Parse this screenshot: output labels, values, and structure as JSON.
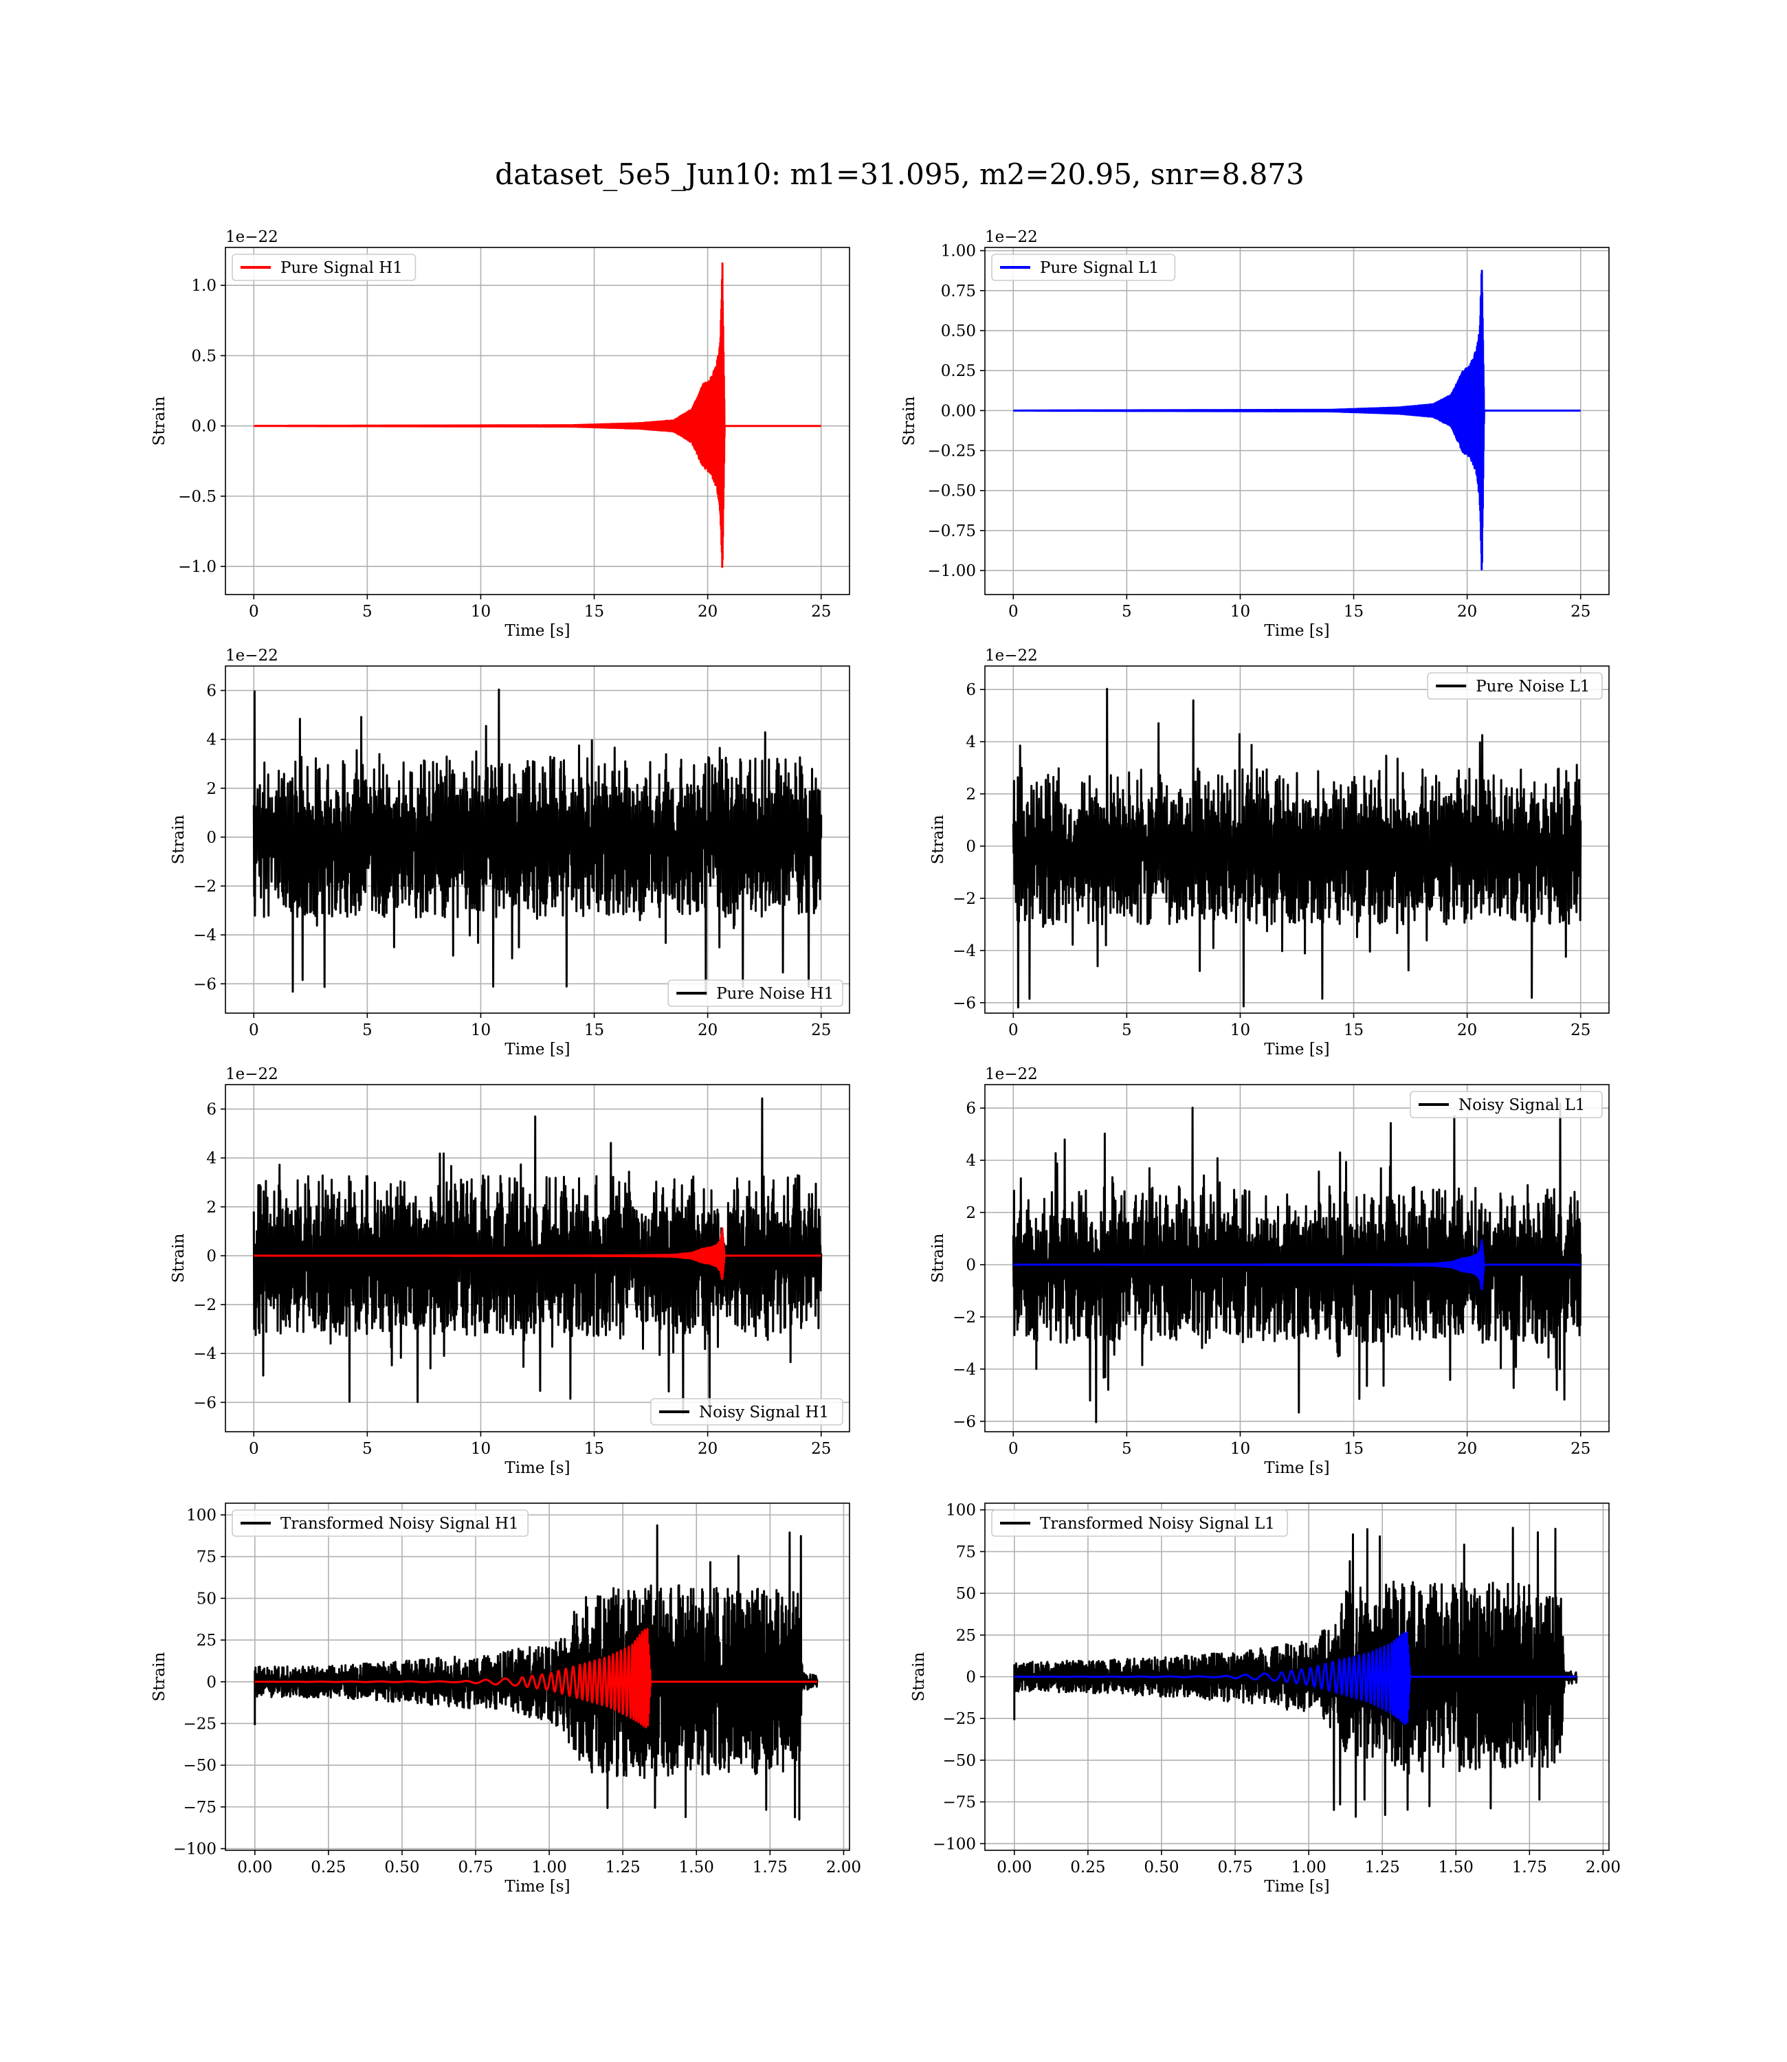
{
  "figure": {
    "title": "dataset_5e5_Jun10: m1=31.095, m2=20.95, snr=8.873"
  },
  "chart_data": [
    {
      "id": "pure-signal-h1",
      "type": "line",
      "xlabel": "Time [s]",
      "ylabel": "Strain",
      "y_offset_label": "1e−22",
      "xlim": [
        -1.25,
        26.25
      ],
      "ylim": [
        -1.2,
        1.27
      ],
      "xticks": [
        0,
        5,
        10,
        15,
        20,
        25
      ],
      "xtick_labels": [
        "0",
        "5",
        "10",
        "15",
        "20",
        "25"
      ],
      "yticks": [
        -1.0,
        -0.5,
        0.0,
        0.5,
        1.0
      ],
      "ytick_labels": [
        "−1.0",
        "−0.5",
        "0.0",
        "0.5",
        "1.0"
      ],
      "grid": true,
      "legend_position": "upper-left",
      "series": [
        {
          "name": "Pure Signal H1",
          "color": "#ff0000",
          "kind": "chirp",
          "x_start": 0,
          "x_end": 25,
          "t_merger": 20.65,
          "env_x": [
            0,
            14,
            17,
            18.5,
            19.3,
            19.8,
            20.1,
            20.4,
            20.55,
            20.65,
            20.75
          ],
          "env_upper": [
            0,
            0.005,
            0.02,
            0.04,
            0.12,
            0.3,
            0.33,
            0.45,
            0.6,
            1.16,
            0
          ],
          "env_lower": [
            0,
            -0.005,
            -0.02,
            -0.04,
            -0.12,
            -0.3,
            -0.33,
            -0.45,
            -0.62,
            -1.06,
            0
          ]
        }
      ]
    },
    {
      "id": "pure-signal-l1",
      "type": "line",
      "xlabel": "Time [s]",
      "ylabel": "Strain",
      "y_offset_label": "1e−22",
      "xlim": [
        -1.25,
        26.25
      ],
      "ylim": [
        -1.15,
        1.02
      ],
      "xticks": [
        0,
        5,
        10,
        15,
        20,
        25
      ],
      "xtick_labels": [
        "0",
        "5",
        "10",
        "15",
        "20",
        "25"
      ],
      "yticks": [
        -1.0,
        -0.75,
        -0.5,
        -0.25,
        0.0,
        0.25,
        0.5,
        0.75,
        1.0
      ],
      "ytick_labels": [
        "−1.00",
        "−0.75",
        "−0.50",
        "−0.25",
        "0.00",
        "0.25",
        "0.50",
        "0.75",
        "1.00"
      ],
      "grid": true,
      "legend_position": "upper-left",
      "series": [
        {
          "name": "Pure Signal L1",
          "color": "#0000ff",
          "kind": "chirp",
          "x_start": 0,
          "x_end": 25,
          "t_merger": 20.65,
          "env_x": [
            0,
            14,
            17,
            18.5,
            19.3,
            19.8,
            20.1,
            20.4,
            20.55,
            20.65,
            20.75
          ],
          "env_upper": [
            0,
            0.005,
            0.02,
            0.04,
            0.1,
            0.25,
            0.28,
            0.38,
            0.5,
            0.95,
            0
          ],
          "env_lower": [
            0,
            -0.005,
            -0.02,
            -0.04,
            -0.1,
            -0.26,
            -0.29,
            -0.39,
            -0.55,
            -1.05,
            0
          ]
        }
      ]
    },
    {
      "id": "pure-noise-h1",
      "type": "line",
      "xlabel": "Time [s]",
      "ylabel": "Strain",
      "y_offset_label": "1e−22",
      "xlim": [
        -1.25,
        26.25
      ],
      "ylim": [
        -7.2,
        7.0
      ],
      "xticks": [
        0,
        5,
        10,
        15,
        20,
        25
      ],
      "xtick_labels": [
        "0",
        "5",
        "10",
        "15",
        "20",
        "25"
      ],
      "yticks": [
        -6,
        -4,
        -2,
        0,
        2,
        4,
        6
      ],
      "ytick_labels": [
        "−6",
        "−4",
        "−2",
        "0",
        "2",
        "4",
        "6"
      ],
      "grid": true,
      "legend_position": "lower-right",
      "series": [
        {
          "name": "Pure Noise H1",
          "color": "#000000",
          "kind": "noise",
          "x_start": 0,
          "x_end": 25,
          "core": 3.3,
          "peak_max": 6.4,
          "peak_min": -6.5
        }
      ]
    },
    {
      "id": "pure-noise-l1",
      "type": "line",
      "xlabel": "Time [s]",
      "ylabel": "Strain",
      "y_offset_label": "1e−22",
      "xlim": [
        -1.25,
        26.25
      ],
      "ylim": [
        -6.4,
        6.9
      ],
      "xticks": [
        0,
        5,
        10,
        15,
        20,
        25
      ],
      "xtick_labels": [
        "0",
        "5",
        "10",
        "15",
        "20",
        "25"
      ],
      "yticks": [
        -6,
        -4,
        -2,
        0,
        2,
        4,
        6
      ],
      "ytick_labels": [
        "−6",
        "−4",
        "−2",
        "0",
        "2",
        "4",
        "6"
      ],
      "grid": true,
      "legend_position": "upper-right",
      "series": [
        {
          "name": "Pure Noise L1",
          "color": "#000000",
          "kind": "noise",
          "x_start": 0,
          "x_end": 25,
          "core": 3.0,
          "peak_max": 6.3,
          "peak_min": -5.9
        }
      ]
    },
    {
      "id": "noisy-signal-h1",
      "type": "line",
      "xlabel": "Time [s]",
      "ylabel": "Strain",
      "y_offset_label": "1e−22",
      "xlim": [
        -1.25,
        26.25
      ],
      "ylim": [
        -7.2,
        7.0
      ],
      "xticks": [
        0,
        5,
        10,
        15,
        20,
        25
      ],
      "xtick_labels": [
        "0",
        "5",
        "10",
        "15",
        "20",
        "25"
      ],
      "yticks": [
        -6,
        -4,
        -2,
        0,
        2,
        4,
        6
      ],
      "ytick_labels": [
        "−6",
        "−4",
        "−2",
        "0",
        "2",
        "4",
        "6"
      ],
      "grid": true,
      "legend_position": "lower-right",
      "series": [
        {
          "name": "Noisy Signal H1",
          "color": "#000000",
          "kind": "noise",
          "x_start": 0,
          "x_end": 25,
          "core": 3.3,
          "peak_max": 6.4,
          "peak_min": -6.5
        },
        {
          "color": "#ff0000",
          "kind": "chirp",
          "x_start": 0,
          "x_end": 25,
          "t_merger": 20.65,
          "env_x": [
            0,
            14,
            17,
            18.5,
            19.3,
            19.8,
            20.1,
            20.4,
            20.55,
            20.65,
            20.75
          ],
          "env_upper": [
            0,
            0.005,
            0.02,
            0.04,
            0.12,
            0.3,
            0.33,
            0.45,
            0.6,
            1.16,
            0
          ],
          "env_lower": [
            0,
            -0.005,
            -0.02,
            -0.04,
            -0.12,
            -0.3,
            -0.33,
            -0.45,
            -0.62,
            -1.06,
            0
          ]
        }
      ]
    },
    {
      "id": "noisy-signal-l1",
      "type": "line",
      "xlabel": "Time [s]",
      "ylabel": "Strain",
      "y_offset_label": "1e−22",
      "xlim": [
        -1.25,
        26.25
      ],
      "ylim": [
        -6.4,
        6.9
      ],
      "xticks": [
        0,
        5,
        10,
        15,
        20,
        25
      ],
      "xtick_labels": [
        "0",
        "5",
        "10",
        "15",
        "20",
        "25"
      ],
      "yticks": [
        -6,
        -4,
        -2,
        0,
        2,
        4,
        6
      ],
      "ytick_labels": [
        "−6",
        "−4",
        "−2",
        "0",
        "2",
        "4",
        "6"
      ],
      "grid": true,
      "legend_position": "upper-right",
      "series": [
        {
          "name": "Noisy Signal L1",
          "color": "#000000",
          "kind": "noise",
          "x_start": 0,
          "x_end": 25,
          "core": 3.0,
          "peak_max": 6.3,
          "peak_min": -5.9
        },
        {
          "color": "#0000ff",
          "kind": "chirp",
          "x_start": 0,
          "x_end": 25,
          "t_merger": 20.65,
          "env_x": [
            0,
            14,
            17,
            18.5,
            19.3,
            19.8,
            20.1,
            20.4,
            20.55,
            20.65,
            20.75
          ],
          "env_upper": [
            0,
            0.005,
            0.02,
            0.04,
            0.1,
            0.25,
            0.28,
            0.38,
            0.5,
            0.95,
            0
          ],
          "env_lower": [
            0,
            -0.005,
            -0.02,
            -0.04,
            -0.1,
            -0.26,
            -0.29,
            -0.39,
            -0.55,
            -1.05,
            0
          ]
        }
      ]
    },
    {
      "id": "transformed-noisy-signal-h1",
      "type": "line",
      "xlabel": "Time [s]",
      "ylabel": "Strain",
      "xlim": [
        -0.1,
        2.02
      ],
      "ylim": [
        -101,
        107
      ],
      "xticks": [
        0.0,
        0.25,
        0.5,
        0.75,
        1.0,
        1.25,
        1.5,
        1.75,
        2.0
      ],
      "xtick_labels": [
        "0.00",
        "0.25",
        "0.50",
        "0.75",
        "1.00",
        "1.25",
        "1.50",
        "1.75",
        "2.00"
      ],
      "yticks": [
        -100,
        -75,
        -50,
        -25,
        0,
        25,
        50,
        75,
        100
      ],
      "ytick_labels": [
        "−100",
        "−75",
        "−50",
        "−25",
        "0",
        "25",
        "50",
        "75",
        "100"
      ],
      "grid": true,
      "legend_position": "upper-left",
      "series": [
        {
          "name": "Transformed Noisy Signal H1",
          "color": "#000000",
          "kind": "band_noise",
          "x_start": 0,
          "x_end": 1.91,
          "env_x": [
            0,
            0.3,
            0.6,
            0.8,
            0.9,
            1.0,
            1.05,
            1.1,
            1.15,
            1.3,
            1.5,
            1.7,
            1.8,
            1.85,
            1.86,
            1.87,
            1.91
          ],
          "env": [
            9,
            10,
            14,
            17,
            20,
            24,
            30,
            50,
            55,
            58,
            58,
            56,
            55,
            54,
            6,
            5,
            4
          ],
          "peak_max": 98,
          "peak_min": -92
        },
        {
          "color": "#ff0000",
          "kind": "chirp",
          "x_start": 0,
          "x_end": 1.91,
          "t_merger": 1.335,
          "env_x": [
            0,
            0.7,
            0.9,
            1.0,
            1.1,
            1.2,
            1.28,
            1.32,
            1.335,
            1.345
          ],
          "env_upper": [
            0,
            0.3,
            2.5,
            5,
            10,
            15,
            22,
            31,
            32,
            0
          ],
          "env_lower": [
            0,
            -0.3,
            -2.5,
            -5,
            -10,
            -15,
            -22,
            -27,
            -28,
            0
          ],
          "cycles_x": [
            0.0,
            0.7,
            0.9,
            1.0,
            1.1,
            1.2,
            1.28,
            1.33,
            1.345
          ],
          "cycles": [
            0,
            7,
            10,
            13,
            17,
            23,
            29,
            35,
            40
          ]
        }
      ]
    },
    {
      "id": "transformed-noisy-signal-l1",
      "type": "line",
      "xlabel": "Time [s]",
      "ylabel": "Strain",
      "xlim": [
        -0.1,
        2.02
      ],
      "ylim": [
        -104,
        104
      ],
      "xticks": [
        0.0,
        0.25,
        0.5,
        0.75,
        1.0,
        1.25,
        1.5,
        1.75,
        2.0
      ],
      "xtick_labels": [
        "0.00",
        "0.25",
        "0.50",
        "0.75",
        "1.00",
        "1.25",
        "1.50",
        "1.75",
        "2.00"
      ],
      "yticks": [
        -100,
        -75,
        -50,
        -25,
        0,
        25,
        50,
        75,
        100
      ],
      "ytick_labels": [
        "−100",
        "−75",
        "−50",
        "−25",
        "0",
        "25",
        "50",
        "75",
        "100"
      ],
      "grid": true,
      "legend_position": "upper-left",
      "series": [
        {
          "name": "Transformed Noisy Signal L1",
          "color": "#000000",
          "kind": "band_noise",
          "x_start": 0,
          "x_end": 1.91,
          "env_x": [
            0,
            0.3,
            0.6,
            0.8,
            0.9,
            1.0,
            1.05,
            1.1,
            1.12,
            1.3,
            1.5,
            1.7,
            1.8,
            1.86,
            1.87,
            1.88,
            1.91
          ],
          "env": [
            9,
            10,
            13,
            16,
            19,
            22,
            28,
            35,
            52,
            58,
            58,
            56,
            55,
            54,
            6,
            5,
            4
          ],
          "peak_max": 90,
          "peak_min": -93
        },
        {
          "color": "#0000ff",
          "kind": "chirp",
          "x_start": 0,
          "x_end": 1.91,
          "t_merger": 1.335,
          "env_x": [
            0,
            0.7,
            0.9,
            1.0,
            1.1,
            1.2,
            1.28,
            1.32,
            1.335,
            1.345
          ],
          "env_upper": [
            0,
            0.3,
            2.5,
            5,
            10,
            14,
            20,
            26,
            27,
            0
          ],
          "env_lower": [
            0,
            -0.3,
            -2.5,
            -5,
            -10,
            -15,
            -22,
            -28,
            -29,
            0
          ],
          "cycles_x": [
            0.0,
            0.7,
            0.9,
            1.0,
            1.1,
            1.2,
            1.28,
            1.33,
            1.345
          ],
          "cycles": [
            0,
            7,
            10,
            13,
            17,
            23,
            29,
            35,
            40
          ]
        }
      ]
    }
  ]
}
